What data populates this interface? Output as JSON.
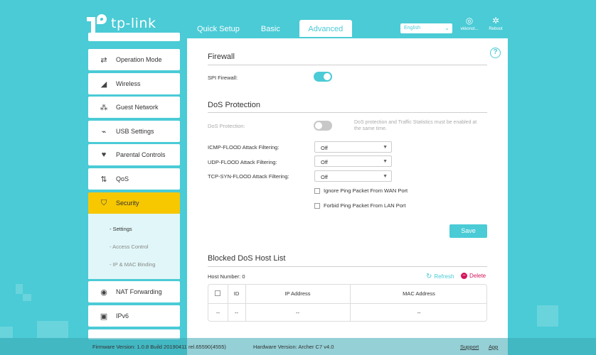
{
  "brand": {
    "name": "tp-link"
  },
  "top_tabs": [
    {
      "label": "Quick Setup"
    },
    {
      "label": "Basic"
    },
    {
      "label": "Advanced",
      "active": true
    }
  ],
  "language": {
    "selected": "English"
  },
  "header_icons": [
    {
      "name": "account-icon",
      "label": "vkkonst..."
    },
    {
      "name": "reboot-icon",
      "label": "Reboot"
    }
  ],
  "sidebar": {
    "items": [
      {
        "label": "Operation Mode",
        "icon": "operation-mode-icon"
      },
      {
        "label": "Wireless",
        "icon": "wireless-icon"
      },
      {
        "label": "Guest Network",
        "icon": "guest-network-icon"
      },
      {
        "label": "USB Settings",
        "icon": "usb-icon"
      },
      {
        "label": "Parental Controls",
        "icon": "parental-controls-icon"
      },
      {
        "label": "QoS",
        "icon": "qos-icon"
      },
      {
        "label": "Security",
        "icon": "shield-icon",
        "active": true
      },
      {
        "label": "NAT Forwarding",
        "icon": "nat-forwarding-icon"
      },
      {
        "label": "IPv6",
        "icon": "ipv6-icon"
      }
    ],
    "sub_items": [
      {
        "label": "- Settings",
        "active": true
      },
      {
        "label": "- Access Control"
      },
      {
        "label": "- IP & MAC Binding"
      }
    ]
  },
  "firewall": {
    "title": "Firewall",
    "spi_label": "SPI Firewall:",
    "spi_on": true
  },
  "dos": {
    "title": "DoS Protection",
    "protection_label": "DoS Protection:",
    "protection_on": false,
    "note": "DoS protection and Traffic Statistics must be enabled at the same time.",
    "icmp_label": "ICMP-FLOOD Attack Filtering:",
    "icmp_value": "Off",
    "udp_label": "UDP-FLOOD Attack Filtering:",
    "udp_value": "Off",
    "tcp_label": "TCP-SYN-FLOOD Attack Filtering:",
    "tcp_value": "Off",
    "ignore_ping_label": "Ignore Ping Packet From WAN Port",
    "forbid_ping_label": "Forbid Ping Packet From LAN Port",
    "save_label": "Save"
  },
  "blocked": {
    "title": "Blocked DoS Host List",
    "host_number": "Host Number: 0",
    "refresh_label": "Refresh",
    "delete_label": "Delete",
    "columns": [
      "ID",
      "IP Address",
      "MAC Address"
    ],
    "row": [
      "--",
      "--",
      "--",
      "--"
    ]
  },
  "footer": {
    "firmware": "Firmware Version: 1.0.8 Build 20190411 rel.65590(4555)",
    "hardware": "Hardware Version: Archer C7 v4.0",
    "support": "Support",
    "app": "App"
  },
  "colors": {
    "accent": "#4acbd6",
    "active": "#f7c700",
    "delete": "#d4145a"
  }
}
